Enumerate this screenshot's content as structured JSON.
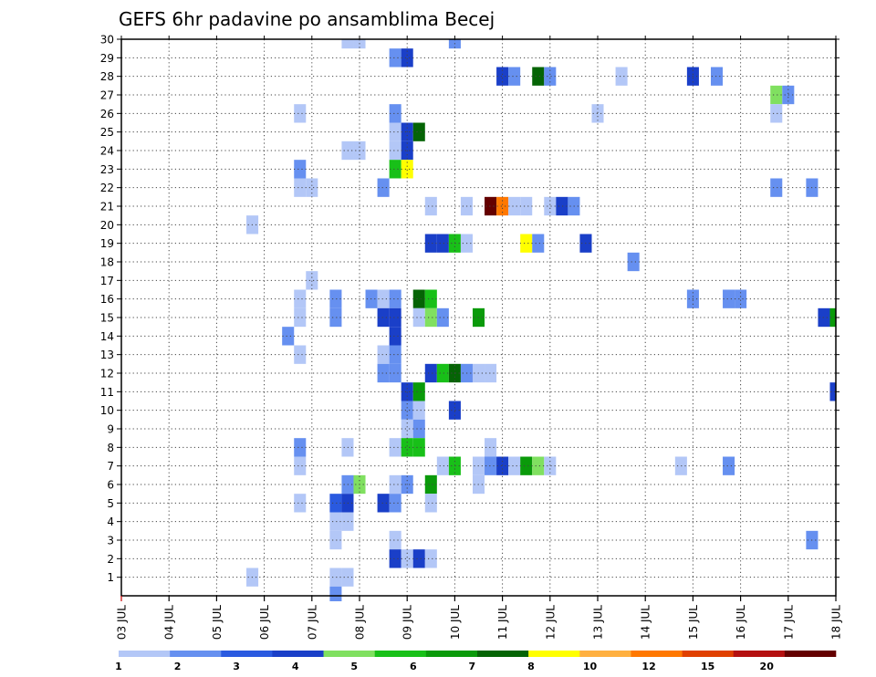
{
  "chart_data": {
    "type": "heatmap",
    "title": "GEFS 6hr padavine po ansamblima Becej",
    "subtitle": "",
    "xlabel": "",
    "ylabel": "",
    "x_unit": "days",
    "x_start_tick_label": "03 JUL",
    "x_tick_labels": [
      "03 JUL",
      "04 JUL",
      "05 JUL",
      "06 JUL",
      "07 JUL",
      "08 JUL",
      "09 JUL",
      "10 JUL",
      "11 JUL",
      "12 JUL",
      "13 JUL",
      "14 JUL",
      "15 JUL",
      "16 JUL",
      "17 JUL",
      "18 JUL"
    ],
    "y_tick_labels": [
      "1",
      "2",
      "3",
      "4",
      "5",
      "6",
      "7",
      "8",
      "9",
      "10",
      "11",
      "12",
      "13",
      "14",
      "15",
      "16",
      "17",
      "18",
      "19",
      "20",
      "21",
      "22",
      "23",
      "24",
      "25",
      "26",
      "27",
      "28",
      "29",
      "30"
    ],
    "ylim": [
      0,
      30
    ],
    "grid": true,
    "colorbar": {
      "position": "bottom",
      "labels": [
        "1",
        "2",
        "3",
        "4",
        "5",
        "6",
        "7",
        "8",
        "10",
        "12",
        "15",
        "20"
      ],
      "colors": [
        "#b3c7f7",
        "#6690f0",
        "#2a5ae0",
        "#1a3fc8",
        "#80e060",
        "#18c018",
        "#0a9a0a",
        "#056405",
        "#ffff00",
        "#ffb040",
        "#ff7800",
        "#e04000",
        "#b41010",
        "#640000"
      ]
    },
    "cells": [
      {
        "x": 4.75,
        "y": 30,
        "c": 1
      },
      {
        "x": 5,
        "y": 30,
        "c": 1
      },
      {
        "x": 7,
        "y": 30,
        "c": 2
      },
      {
        "x": 5.75,
        "y": 29,
        "c": 2
      },
      {
        "x": 6,
        "y": 29,
        "c": 4
      },
      {
        "x": 8,
        "y": 28,
        "c": 4
      },
      {
        "x": 8.25,
        "y": 28,
        "c": 2
      },
      {
        "x": 8.75,
        "y": 28,
        "c": 8
      },
      {
        "x": 9,
        "y": 28,
        "c": 2
      },
      {
        "x": 10.5,
        "y": 28,
        "c": 1
      },
      {
        "x": 12,
        "y": 28,
        "c": 4
      },
      {
        "x": 12.5,
        "y": 28,
        "c": 2
      },
      {
        "x": 13.75,
        "y": 27,
        "c": 5
      },
      {
        "x": 14,
        "y": 27,
        "c": 2
      },
      {
        "x": 3.75,
        "y": 26,
        "c": 1
      },
      {
        "x": 5.75,
        "y": 26,
        "c": 2
      },
      {
        "x": 10,
        "y": 26,
        "c": 1
      },
      {
        "x": 13.75,
        "y": 26,
        "c": 1
      },
      {
        "x": 5.75,
        "y": 25,
        "c": 1
      },
      {
        "x": 6,
        "y": 25,
        "c": 4
      },
      {
        "x": 6.25,
        "y": 25,
        "c": 8
      },
      {
        "x": 4.75,
        "y": 24,
        "c": 1
      },
      {
        "x": 5,
        "y": 24,
        "c": 1
      },
      {
        "x": 5.75,
        "y": 24,
        "c": 1
      },
      {
        "x": 6,
        "y": 24,
        "c": 4
      },
      {
        "x": 3.75,
        "y": 23,
        "c": 2
      },
      {
        "x": 5.75,
        "y": 23,
        "c": 6
      },
      {
        "x": 6,
        "y": 23,
        "c": 9
      },
      {
        "x": 3.75,
        "y": 22,
        "c": 1
      },
      {
        "x": 4,
        "y": 22,
        "c": 1
      },
      {
        "x": 5.5,
        "y": 22,
        "c": 2
      },
      {
        "x": 13.75,
        "y": 22,
        "c": 2
      },
      {
        "x": 14.5,
        "y": 22,
        "c": 2
      },
      {
        "x": 6.5,
        "y": 21,
        "c": 1
      },
      {
        "x": 7.25,
        "y": 21,
        "c": 1
      },
      {
        "x": 7.75,
        "y": 21,
        "c": 14
      },
      {
        "x": 8,
        "y": 21,
        "c": 11
      },
      {
        "x": 8.25,
        "y": 21,
        "c": 1
      },
      {
        "x": 8.5,
        "y": 21,
        "c": 1
      },
      {
        "x": 9,
        "y": 21,
        "c": 1
      },
      {
        "x": 9.25,
        "y": 21,
        "c": 4
      },
      {
        "x": 9.5,
        "y": 21,
        "c": 2
      },
      {
        "x": 2.75,
        "y": 20,
        "c": 1
      },
      {
        "x": 6.5,
        "y": 19,
        "c": 4
      },
      {
        "x": 6.75,
        "y": 19,
        "c": 4
      },
      {
        "x": 7,
        "y": 19,
        "c": 6
      },
      {
        "x": 7.25,
        "y": 19,
        "c": 1
      },
      {
        "x": 8.5,
        "y": 19,
        "c": 9
      },
      {
        "x": 8.75,
        "y": 19,
        "c": 2
      },
      {
        "x": 9.75,
        "y": 19,
        "c": 4
      },
      {
        "x": 10.75,
        "y": 18,
        "c": 2
      },
      {
        "x": 4,
        "y": 17,
        "c": 1
      },
      {
        "x": 3.75,
        "y": 16,
        "c": 1
      },
      {
        "x": 4.5,
        "y": 16,
        "c": 2
      },
      {
        "x": 5.25,
        "y": 16,
        "c": 2
      },
      {
        "x": 5.5,
        "y": 16,
        "c": 1
      },
      {
        "x": 5.75,
        "y": 16,
        "c": 2
      },
      {
        "x": 6.25,
        "y": 16,
        "c": 8
      },
      {
        "x": 6.5,
        "y": 16,
        "c": 6
      },
      {
        "x": 12,
        "y": 16,
        "c": 2
      },
      {
        "x": 12.75,
        "y": 16,
        "c": 2
      },
      {
        "x": 13,
        "y": 16,
        "c": 2
      },
      {
        "x": 3.75,
        "y": 15,
        "c": 1
      },
      {
        "x": 4.5,
        "y": 15,
        "c": 2
      },
      {
        "x": 5.5,
        "y": 15,
        "c": 4
      },
      {
        "x": 5.75,
        "y": 15,
        "c": 4
      },
      {
        "x": 6.25,
        "y": 15,
        "c": 1
      },
      {
        "x": 6.5,
        "y": 15,
        "c": 5
      },
      {
        "x": 6.75,
        "y": 15,
        "c": 2
      },
      {
        "x": 7.5,
        "y": 15,
        "c": 7
      },
      {
        "x": 14.75,
        "y": 15,
        "c": 4
      },
      {
        "x": 15,
        "y": 15,
        "c": 7
      },
      {
        "x": 3.5,
        "y": 14,
        "c": 2
      },
      {
        "x": 5.75,
        "y": 14,
        "c": 4
      },
      {
        "x": 3.75,
        "y": 13,
        "c": 1
      },
      {
        "x": 5.5,
        "y": 13,
        "c": 1
      },
      {
        "x": 5.75,
        "y": 13,
        "c": 2
      },
      {
        "x": 5.5,
        "y": 12,
        "c": 2
      },
      {
        "x": 5.75,
        "y": 12,
        "c": 2
      },
      {
        "x": 6.5,
        "y": 12,
        "c": 4
      },
      {
        "x": 6.75,
        "y": 12,
        "c": 6
      },
      {
        "x": 7,
        "y": 12,
        "c": 8
      },
      {
        "x": 7.25,
        "y": 12,
        "c": 2
      },
      {
        "x": 7.5,
        "y": 12,
        "c": 1
      },
      {
        "x": 7.75,
        "y": 12,
        "c": 1
      },
      {
        "x": 6,
        "y": 11,
        "c": 4
      },
      {
        "x": 6.25,
        "y": 11,
        "c": 7
      },
      {
        "x": 15,
        "y": 11,
        "c": 4
      },
      {
        "x": 6,
        "y": 10,
        "c": 2
      },
      {
        "x": 6.25,
        "y": 10,
        "c": 1
      },
      {
        "x": 7,
        "y": 10,
        "c": 4
      },
      {
        "x": 6,
        "y": 9,
        "c": 1
      },
      {
        "x": 6.25,
        "y": 9,
        "c": 2
      },
      {
        "x": 3.75,
        "y": 8,
        "c": 2
      },
      {
        "x": 4.75,
        "y": 8,
        "c": 1
      },
      {
        "x": 5.75,
        "y": 8,
        "c": 1
      },
      {
        "x": 6,
        "y": 8,
        "c": 6
      },
      {
        "x": 6.25,
        "y": 8,
        "c": 6
      },
      {
        "x": 7.75,
        "y": 8,
        "c": 1
      },
      {
        "x": 3.75,
        "y": 7,
        "c": 1
      },
      {
        "x": 6.75,
        "y": 7,
        "c": 1
      },
      {
        "x": 7,
        "y": 7,
        "c": 6
      },
      {
        "x": 7.5,
        "y": 7,
        "c": 1
      },
      {
        "x": 7.75,
        "y": 7,
        "c": 2
      },
      {
        "x": 8,
        "y": 7,
        "c": 4
      },
      {
        "x": 8.25,
        "y": 7,
        "c": 1
      },
      {
        "x": 8.5,
        "y": 7,
        "c": 7
      },
      {
        "x": 8.75,
        "y": 7,
        "c": 5
      },
      {
        "x": 9,
        "y": 7,
        "c": 1
      },
      {
        "x": 11.75,
        "y": 7,
        "c": 1
      },
      {
        "x": 12.75,
        "y": 7,
        "c": 2
      },
      {
        "x": 4.75,
        "y": 6,
        "c": 2
      },
      {
        "x": 5,
        "y": 6,
        "c": 5
      },
      {
        "x": 5.75,
        "y": 6,
        "c": 1
      },
      {
        "x": 6,
        "y": 6,
        "c": 2
      },
      {
        "x": 6.5,
        "y": 6,
        "c": 7
      },
      {
        "x": 7.5,
        "y": 6,
        "c": 1
      },
      {
        "x": 3.75,
        "y": 5,
        "c": 1
      },
      {
        "x": 4.5,
        "y": 5,
        "c": 3
      },
      {
        "x": 4.75,
        "y": 5,
        "c": 4
      },
      {
        "x": 5.5,
        "y": 5,
        "c": 4
      },
      {
        "x": 5.75,
        "y": 5,
        "c": 2
      },
      {
        "x": 6.5,
        "y": 5,
        "c": 1
      },
      {
        "x": 4.5,
        "y": 4,
        "c": 1
      },
      {
        "x": 4.75,
        "y": 4,
        "c": 1
      },
      {
        "x": 4.5,
        "y": 3,
        "c": 1
      },
      {
        "x": 5.75,
        "y": 3,
        "c": 1
      },
      {
        "x": 14.5,
        "y": 3,
        "c": 2
      },
      {
        "x": 5.75,
        "y": 2,
        "c": 4
      },
      {
        "x": 6,
        "y": 2,
        "c": 1
      },
      {
        "x": 6.25,
        "y": 2,
        "c": 4
      },
      {
        "x": 6.5,
        "y": 2,
        "c": 1
      },
      {
        "x": 2.75,
        "y": 1,
        "c": 1
      },
      {
        "x": 4.5,
        "y": 1,
        "c": 1
      },
      {
        "x": 4.75,
        "y": 1,
        "c": 1
      },
      {
        "x": 4.5,
        "y": 0,
        "c": 2
      }
    ]
  }
}
